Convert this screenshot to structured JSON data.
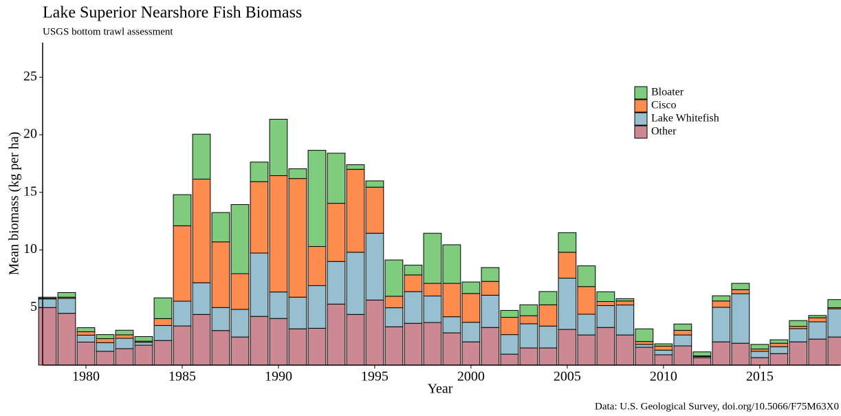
{
  "chart_data": {
    "type": "stacked_bar",
    "title": "Lake Superior Nearshore Fish Biomass",
    "subtitle": "USGS bottom trawl assessment",
    "x_label": "Year",
    "y_label": "Mean biomass (kg per ha)",
    "caption": "Data: U.S. Geological Survey, doi.org/10.5066/F75M63X0",
    "x": [
      1978,
      1979,
      1980,
      1981,
      1982,
      1983,
      1984,
      1985,
      1986,
      1987,
      1988,
      1989,
      1990,
      1991,
      1992,
      1993,
      1994,
      1995,
      1996,
      1997,
      1998,
      1999,
      2000,
      2001,
      2002,
      2003,
      2004,
      2005,
      2006,
      2007,
      2008,
      2009,
      2010,
      2011,
      2012,
      2013,
      2014,
      2015,
      2016,
      2017,
      2018,
      2019
    ],
    "series": [
      {
        "name": "Bloater",
        "color": "#7fcc7f",
        "values": [
          0.1,
          0.4,
          0.35,
          0.35,
          0.4,
          0.4,
          1.8,
          2.7,
          3.9,
          2.55,
          6.0,
          1.7,
          4.9,
          0.85,
          8.35,
          4.35,
          0.4,
          0.55,
          3.15,
          0.85,
          4.35,
          3.35,
          1.0,
          1.2,
          0.6,
          0.95,
          1.15,
          1.7,
          1.8,
          0.85,
          0.2,
          1.1,
          0.2,
          0.55,
          0.35,
          0.45,
          0.55,
          0.4,
          0.3,
          0.5,
          0.2,
          0.7
        ]
      },
      {
        "name": "Cisco",
        "color": "#ff8c4f",
        "values": [
          0.05,
          0.1,
          0.3,
          0.35,
          0.3,
          0.1,
          0.6,
          6.55,
          9.0,
          5.7,
          3.1,
          6.2,
          10.1,
          10.3,
          3.4,
          5.05,
          7.2,
          4.0,
          1.0,
          1.45,
          1.1,
          2.9,
          2.5,
          1.2,
          1.5,
          0.7,
          1.85,
          2.25,
          2.4,
          0.35,
          0.35,
          0.25,
          0.35,
          0.4,
          0.05,
          0.55,
          0.35,
          0.2,
          0.3,
          0.2,
          0.35,
          0.1
        ]
      },
      {
        "name": "Lake Whitefish",
        "color": "#98bfcf",
        "values": [
          0.75,
          1.3,
          0.6,
          0.75,
          0.9,
          0.25,
          1.3,
          2.15,
          2.75,
          2.0,
          2.4,
          5.5,
          2.3,
          2.75,
          3.7,
          3.7,
          5.4,
          5.8,
          1.65,
          2.75,
          2.3,
          1.4,
          1.7,
          2.8,
          1.7,
          2.1,
          1.9,
          4.45,
          1.8,
          1.9,
          2.6,
          0.25,
          0.4,
          0.95,
          0.1,
          3.0,
          4.3,
          0.55,
          0.6,
          1.15,
          1.5,
          2.45
        ]
      },
      {
        "name": "Other",
        "color": "#cc8993",
        "values": [
          5.0,
          4.5,
          2.0,
          1.2,
          1.43,
          1.73,
          2.14,
          3.4,
          4.4,
          3.0,
          2.44,
          4.23,
          4.05,
          3.15,
          3.2,
          5.3,
          4.4,
          5.65,
          3.33,
          3.63,
          3.7,
          2.8,
          2.02,
          3.27,
          0.95,
          1.49,
          1.49,
          3.1,
          2.62,
          3.27,
          2.62,
          1.55,
          0.9,
          1.67,
          0.65,
          2.02,
          1.9,
          0.65,
          1.0,
          2.02,
          2.26,
          2.44
        ]
      }
    ],
    "xlim": [
      1977.75,
      2019.15
    ],
    "xticks": [
      1980,
      1985,
      1990,
      1995,
      2000,
      2005,
      2010,
      2015
    ],
    "ylim": [
      0,
      28
    ],
    "yticks": [
      5,
      10,
      15,
      20,
      25
    ],
    "legend": "top-right"
  }
}
